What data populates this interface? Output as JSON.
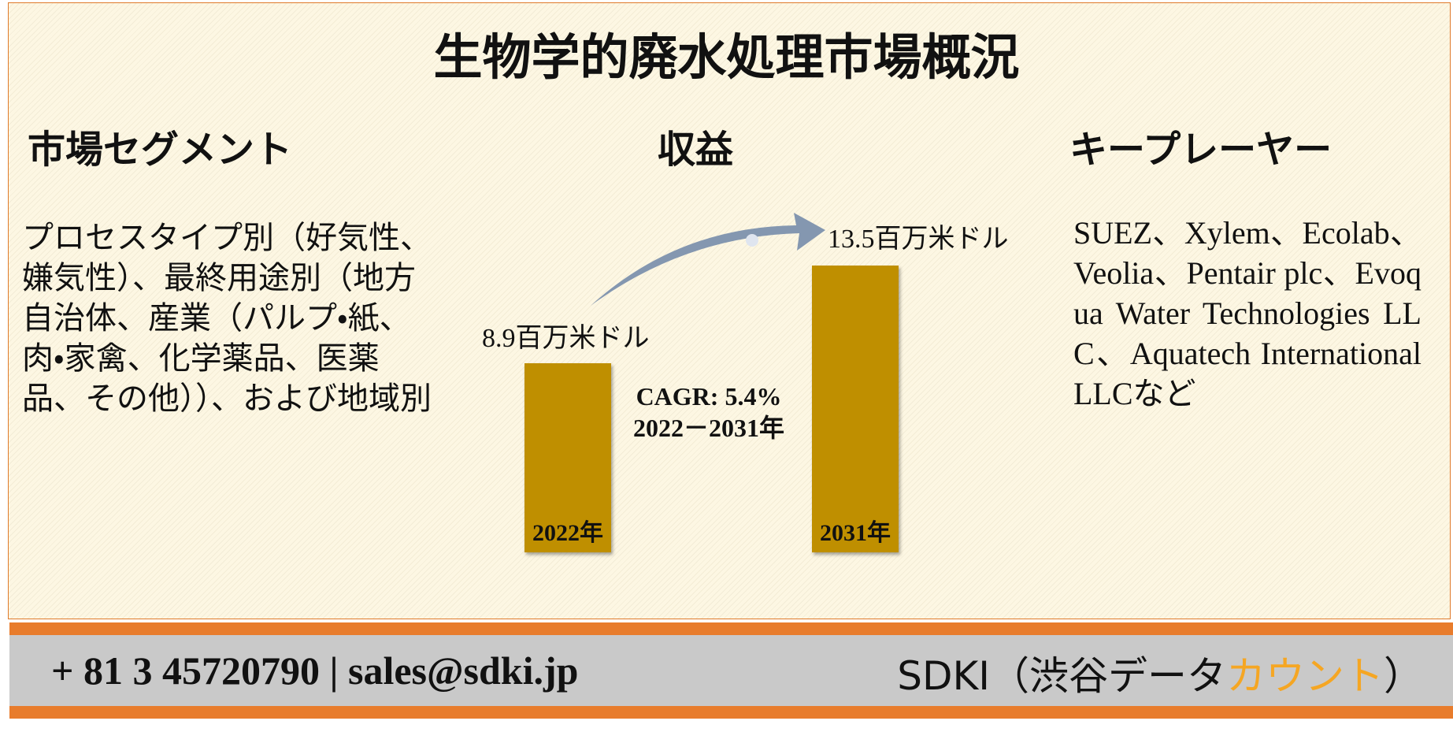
{
  "header": {
    "title": "生物学的廃水処理市場概況"
  },
  "segments": {
    "heading": "市場セグメント",
    "text": "プロセスタイプ別（好気性、嫌気性）、最終用途別（地方自治体、産業（パルプ・紙、肉・家禽、化学薬品、医薬品、その他））、および地域別"
  },
  "revenue": {
    "heading": "収益",
    "bars": [
      {
        "label": "2022年",
        "value": 8.9,
        "value_label": "8.9百万米ドル"
      },
      {
        "label": "2031年",
        "value": 13.5,
        "value_label": "13.5百万米ドル"
      }
    ],
    "cagr": "CAGR: 5.4%",
    "period": "2022－2031年",
    "color": "#bf8f00"
  },
  "players": {
    "heading": "キープレーヤー",
    "text": "SUEZ、Xylem、Ecolab、Veolia、Pentair plc、Evoqua Water Technologies LLC、Aquatech International LLCなど"
  },
  "footer": {
    "contact": "+ 81 3 45720790 | sales@sdki.jp",
    "brand_prefix": "SDKI（渋谷データ",
    "brand_highlight": "カウント",
    "brand_suffix": "）"
  }
}
